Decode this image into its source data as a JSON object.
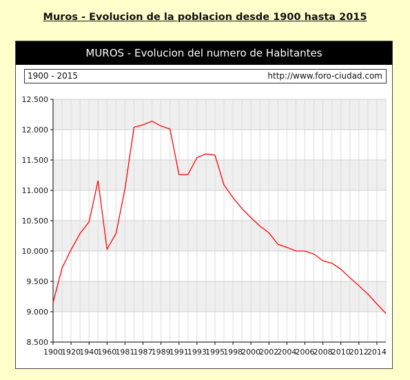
{
  "page": {
    "title": "Muros - Evolucion de la poblacion desde 1900 hasta 2015"
  },
  "panel": {
    "header": "MUROS - Evolucion del numero de Habitantes",
    "range_label": "1900 - 2015",
    "source_url": "http://www.foro-ciudad.com"
  },
  "colors": {
    "page_background": "#ffffcc",
    "line": "#ff0000",
    "header_background": "#000000",
    "band": "#efefef"
  },
  "chart_data": {
    "type": "line",
    "title": "MUROS - Evolucion del numero de Habitantes",
    "xlabel": "",
    "ylabel": "",
    "ylim": [
      8500,
      12500
    ],
    "yticks": [
      8500,
      9000,
      9500,
      10000,
      10500,
      11000,
      11500,
      12000,
      12500
    ],
    "ytick_labels": [
      "8.500",
      "9.000",
      "9.500",
      "10.000",
      "10.500",
      "11.000",
      "11.500",
      "12.000",
      "12.500"
    ],
    "x_tick_labels": [
      "1900",
      "1920",
      "1940",
      "1960",
      "1981",
      "1987",
      "1989",
      "1991",
      "1993",
      "1995",
      "1998",
      "2000",
      "2002",
      "2004",
      "2006",
      "2008",
      "2010",
      "2012",
      "2014"
    ],
    "grid": true,
    "legend": "none",
    "series": [
      {
        "values": [
          9150,
          9720,
          10020,
          10290,
          10480,
          11160,
          10030,
          10290,
          11030,
          12040,
          12080,
          12140,
          12060,
          12010,
          11260,
          11260,
          11540,
          11600,
          11580,
          11090,
          10880,
          10700,
          10550,
          10410,
          10300,
          10110,
          10060,
          10000,
          10000,
          9950,
          9840,
          9800,
          9700,
          9560,
          9430,
          9290,
          9130,
          8970
        ]
      }
    ]
  }
}
